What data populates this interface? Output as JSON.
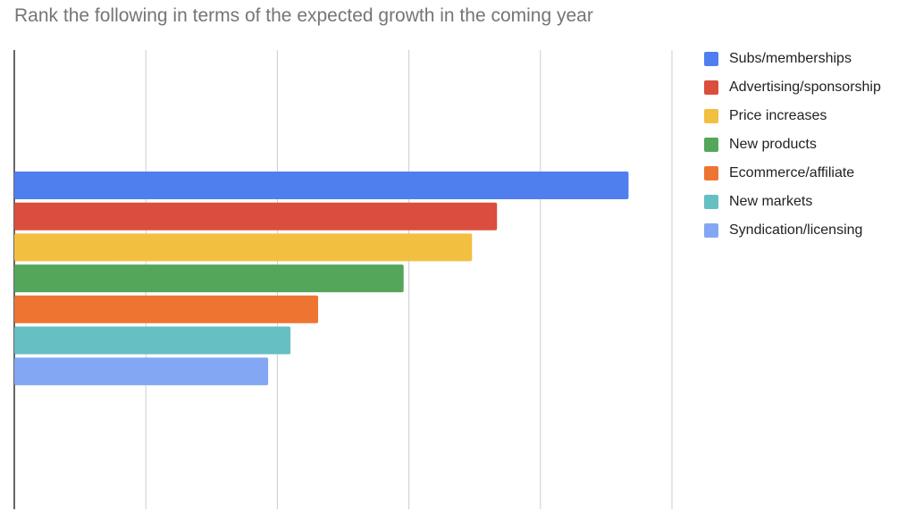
{
  "chart_data": {
    "type": "bar",
    "orientation": "horizontal",
    "title": "Rank the following in terms of the expected growth in the coming year",
    "xlabel": "",
    "ylabel": "",
    "xlim": [
      0,
      5
    ],
    "grid": true,
    "legend_position": "right",
    "series": [
      {
        "name": "Subs/memberships",
        "value": 4.67,
        "color": "#4f7fef"
      },
      {
        "name": "Advertising/sponsorship",
        "value": 3.67,
        "color": "#db4d3d"
      },
      {
        "name": "Price increases",
        "value": 3.48,
        "color": "#f2bf41"
      },
      {
        "name": "New products",
        "value": 2.96,
        "color": "#54a75a"
      },
      {
        "name": "Ecommerce/affiliate",
        "value": 2.31,
        "color": "#ed7531"
      },
      {
        "name": "New markets",
        "value": 2.1,
        "color": "#66bfc2"
      },
      {
        "name": "Syndication/licensing",
        "value": 1.93,
        "color": "#83a7f3"
      }
    ]
  }
}
